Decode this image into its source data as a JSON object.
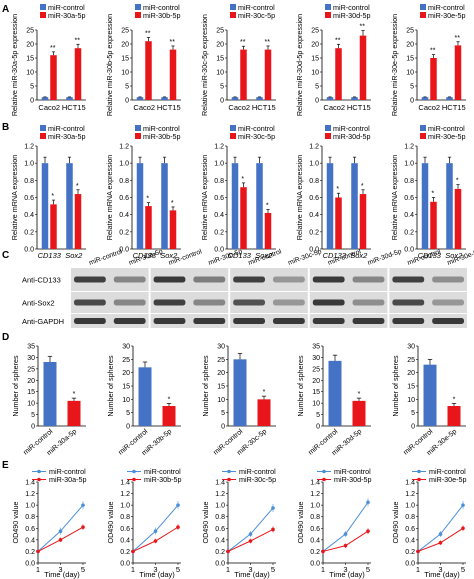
{
  "colors": {
    "control": "#4472c4",
    "treat": "#e8161b",
    "line_control": "#4a90d9",
    "line_treat": "#e8161b",
    "axis": "#000000",
    "blot_bg": "#dcdcdc",
    "band": "#2f2f2f"
  },
  "panel_labels": [
    "A",
    "B",
    "C",
    "D",
    "E"
  ],
  "mirs": [
    "miR-30a-5p",
    "miR-30b-5p",
    "miR-30c-5p",
    "miR-30d-5p",
    "miR-30e-5p"
  ],
  "control_label": "miR-control",
  "blot": {
    "labels": [
      "Anti-CD133",
      "Anti-Sox2",
      "Anti-GAPDH"
    ],
    "lanes": [
      "miR-control",
      "miR-30a-5p",
      "miR-control",
      "miR-30b-5p",
      "miR-control",
      "miR-30c-5p",
      "miR-control",
      "miR-30d-5p",
      "miR-control",
      "miR-30e-5p"
    ]
  },
  "chart_data": [
    {
      "panel": "A",
      "type": "bar",
      "ylabel": "Relative miR-30a-5p expression",
      "categories": [
        "Caco2",
        "HCT15"
      ],
      "ylim": [
        0,
        25
      ],
      "yticks": [
        0,
        5,
        10,
        15,
        20,
        25
      ],
      "series": [
        {
          "name": "miR-control",
          "values": [
            1,
            1
          ],
          "errors": [
            0.1,
            0.1
          ]
        },
        {
          "name": "miR-30a-5p",
          "values": [
            16,
            18.5
          ],
          "errors": [
            1.2,
            1.4
          ]
        }
      ],
      "sig": [
        "**",
        "**"
      ]
    },
    {
      "panel": "A",
      "type": "bar",
      "ylabel": "Relative miR-30b-5p expression",
      "categories": [
        "Caco2",
        "HCT15"
      ],
      "ylim": [
        0,
        25
      ],
      "yticks": [
        0,
        5,
        10,
        15,
        20,
        25
      ],
      "series": [
        {
          "name": "miR-control",
          "values": [
            1,
            1
          ],
          "errors": [
            0.1,
            0.1
          ]
        },
        {
          "name": "miR-30b-5p",
          "values": [
            21,
            18
          ],
          "errors": [
            1.3,
            1.3
          ]
        }
      ],
      "sig": [
        "**",
        "**"
      ]
    },
    {
      "panel": "A",
      "type": "bar",
      "ylabel": "Relative miR-30c-5p expression",
      "categories": [
        "Caco2",
        "HCT15"
      ],
      "ylim": [
        0,
        25
      ],
      "yticks": [
        0,
        5,
        10,
        15,
        20,
        25
      ],
      "series": [
        {
          "name": "miR-control",
          "values": [
            1,
            1
          ],
          "errors": [
            0.1,
            0.1
          ]
        },
        {
          "name": "miR-30c-5p",
          "values": [
            18,
            18
          ],
          "errors": [
            1.2,
            1.3
          ]
        }
      ],
      "sig": [
        "**",
        "**"
      ]
    },
    {
      "panel": "A",
      "type": "bar",
      "ylabel": "Relative miR-30d-5p expression",
      "categories": [
        "Caco2",
        "HCT15"
      ],
      "ylim": [
        0,
        25
      ],
      "yticks": [
        0,
        5,
        10,
        15,
        20,
        25
      ],
      "series": [
        {
          "name": "miR-control",
          "values": [
            1,
            1
          ],
          "errors": [
            0.1,
            0.1
          ]
        },
        {
          "name": "miR-30d-5p",
          "values": [
            18.5,
            23
          ],
          "errors": [
            1.4,
            1.8
          ]
        }
      ],
      "sig": [
        "**",
        "**"
      ]
    },
    {
      "panel": "A",
      "type": "bar",
      "ylabel": "Relative miR-30e-5p expression",
      "categories": [
        "Caco2",
        "HCT15"
      ],
      "ylim": [
        0,
        25
      ],
      "yticks": [
        0,
        5,
        10,
        15,
        20,
        25
      ],
      "series": [
        {
          "name": "miR-control",
          "values": [
            1,
            1
          ],
          "errors": [
            0.1,
            0.1
          ]
        },
        {
          "name": "miR-30e-5p",
          "values": [
            15,
            19.5
          ],
          "errors": [
            1.2,
            1.3
          ]
        }
      ],
      "sig": [
        "**",
        "**"
      ]
    },
    {
      "panel": "B",
      "type": "bar",
      "ylabel": "Relative mRNA expression",
      "categories": [
        "CD133",
        "Sox2"
      ],
      "ylim": [
        0,
        1.2
      ],
      "yticks": [
        0,
        0.2,
        0.4,
        0.6,
        0.8,
        1.0,
        1.2
      ],
      "series": [
        {
          "name": "miR-control",
          "values": [
            1.0,
            1.0
          ],
          "errors": [
            0.07,
            0.07
          ]
        },
        {
          "name": "miR-30a-5p",
          "values": [
            0.52,
            0.64
          ],
          "errors": [
            0.05,
            0.05
          ]
        }
      ],
      "sig": [
        "*",
        "*"
      ]
    },
    {
      "panel": "B",
      "type": "bar",
      "ylabel": "Relative mRNA expression",
      "categories": [
        "CD133",
        "Sox2"
      ],
      "ylim": [
        0,
        1.2
      ],
      "yticks": [
        0,
        0.2,
        0.4,
        0.6,
        0.8,
        1.0,
        1.2
      ],
      "series": [
        {
          "name": "miR-control",
          "values": [
            1.0,
            1.0
          ],
          "errors": [
            0.07,
            0.07
          ]
        },
        {
          "name": "miR-30b-5p",
          "values": [
            0.5,
            0.45
          ],
          "errors": [
            0.04,
            0.04
          ]
        }
      ],
      "sig": [
        "*",
        "*"
      ]
    },
    {
      "panel": "B",
      "type": "bar",
      "ylabel": "Relative mRNA expression",
      "categories": [
        "CD133",
        "Sox2"
      ],
      "ylim": [
        0,
        1.2
      ],
      "yticks": [
        0,
        0.2,
        0.4,
        0.6,
        0.8,
        1.0,
        1.2
      ],
      "series": [
        {
          "name": "miR-control",
          "values": [
            1.0,
            1.0
          ],
          "errors": [
            0.07,
            0.07
          ]
        },
        {
          "name": "miR-30c-5p",
          "values": [
            0.72,
            0.42
          ],
          "errors": [
            0.05,
            0.04
          ]
        }
      ],
      "sig": [
        "*",
        "*"
      ]
    },
    {
      "panel": "B",
      "type": "bar",
      "ylabel": "Relative mRNA expression",
      "categories": [
        "CD133",
        "Sox2"
      ],
      "ylim": [
        0,
        1.2
      ],
      "yticks": [
        0,
        0.2,
        0.4,
        0.6,
        0.8,
        1.0,
        1.2
      ],
      "series": [
        {
          "name": "miR-control",
          "values": [
            1.0,
            1.0
          ],
          "errors": [
            0.07,
            0.07
          ]
        },
        {
          "name": "miR-30d-5p",
          "values": [
            0.6,
            0.64
          ],
          "errors": [
            0.05,
            0.05
          ]
        }
      ],
      "sig": [
        "*",
        "*"
      ]
    },
    {
      "panel": "B",
      "type": "bar",
      "ylabel": "Relative mRNA expression",
      "categories": [
        "CD133",
        "Sox2"
      ],
      "ylim": [
        0,
        1.2
      ],
      "yticks": [
        0,
        0.2,
        0.4,
        0.6,
        0.8,
        1.0,
        1.2
      ],
      "series": [
        {
          "name": "miR-control",
          "values": [
            1.0,
            1.0
          ],
          "errors": [
            0.07,
            0.07
          ]
        },
        {
          "name": "miR-30e-5p",
          "values": [
            0.55,
            0.7
          ],
          "errors": [
            0.05,
            0.05
          ]
        }
      ],
      "sig": [
        "*",
        "*"
      ]
    },
    {
      "panel": "D",
      "type": "bar",
      "ylabel": "Number of spheres",
      "categories": [
        "miR-control",
        "miR-30a-5p"
      ],
      "ylim": [
        0,
        35
      ],
      "yticks": [
        0,
        5,
        10,
        15,
        20,
        25,
        30,
        35
      ],
      "series": [
        {
          "name": "spheres",
          "values": [
            28,
            11
          ],
          "errors": [
            2.5,
            1.2
          ]
        }
      ],
      "sig": [
        "",
        "*"
      ]
    },
    {
      "panel": "D",
      "type": "bar",
      "ylabel": "Number of spheres",
      "categories": [
        "miR-control",
        "miR-30b-5p"
      ],
      "ylim": [
        0,
        30
      ],
      "yticks": [
        0,
        5,
        10,
        15,
        20,
        25,
        30
      ],
      "series": [
        {
          "name": "spheres",
          "values": [
            22,
            7.5
          ],
          "errors": [
            2,
            1
          ]
        }
      ],
      "sig": [
        "",
        "*"
      ]
    },
    {
      "panel": "D",
      "type": "bar",
      "ylabel": "Number of spheres",
      "categories": [
        "miR-control",
        "miR-30c-5p"
      ],
      "ylim": [
        0,
        30
      ],
      "yticks": [
        0,
        5,
        10,
        15,
        20,
        25,
        30
      ],
      "series": [
        {
          "name": "spheres",
          "values": [
            25,
            10
          ],
          "errors": [
            2.2,
            1.2
          ]
        }
      ],
      "sig": [
        "",
        "*"
      ]
    },
    {
      "panel": "D",
      "type": "bar",
      "ylabel": "Number of spheres",
      "categories": [
        "miR-control",
        "miR-30d-5p"
      ],
      "ylim": [
        0,
        35
      ],
      "yticks": [
        0,
        5,
        10,
        15,
        20,
        25,
        30,
        35
      ],
      "series": [
        {
          "name": "spheres",
          "values": [
            28.5,
            11
          ],
          "errors": [
            2.5,
            1.2
          ]
        }
      ],
      "sig": [
        "",
        "*"
      ]
    },
    {
      "panel": "D",
      "type": "bar",
      "ylabel": "Number of spheres",
      "categories": [
        "miR-control",
        "miR-30e-5p"
      ],
      "ylim": [
        0,
        30
      ],
      "yticks": [
        0,
        5,
        10,
        15,
        20,
        25,
        30
      ],
      "series": [
        {
          "name": "spheres",
          "values": [
            23,
            7.5
          ],
          "errors": [
            2,
            1
          ]
        }
      ],
      "sig": [
        "",
        "*"
      ]
    },
    {
      "panel": "E",
      "type": "line",
      "ylabel": "OD490 value",
      "xlabel": "Time (day)",
      "x": [
        1,
        3,
        5
      ],
      "ylim": [
        0,
        1.4
      ],
      "yticks": [
        0,
        0.2,
        0.4,
        0.6,
        0.8,
        1.0,
        1.2,
        1.4
      ],
      "xticks": [
        1,
        3,
        5
      ],
      "series": [
        {
          "name": "miR-control",
          "values": [
            0.2,
            0.55,
            1.0
          ],
          "errors": [
            0.03,
            0.06,
            0.07
          ]
        },
        {
          "name": "miR-30a-5p",
          "values": [
            0.2,
            0.4,
            0.62
          ],
          "errors": [
            0.03,
            0.04,
            0.05
          ]
        }
      ]
    },
    {
      "panel": "E",
      "type": "line",
      "ylabel": "OD490 value",
      "xlabel": "Time (day)",
      "x": [
        1,
        3,
        5
      ],
      "ylim": [
        0,
        1.4
      ],
      "yticks": [
        0,
        0.2,
        0.4,
        0.6,
        0.8,
        1.0,
        1.2,
        1.4
      ],
      "xticks": [
        1,
        3,
        5
      ],
      "series": [
        {
          "name": "miR-control",
          "values": [
            0.2,
            0.55,
            1.0
          ],
          "errors": [
            0.03,
            0.06,
            0.07
          ]
        },
        {
          "name": "miR-30b-5p",
          "values": [
            0.2,
            0.38,
            0.62
          ],
          "errors": [
            0.03,
            0.04,
            0.05
          ]
        }
      ]
    },
    {
      "panel": "E",
      "type": "line",
      "ylabel": "OD490 value",
      "xlabel": "Time (day)",
      "x": [
        1,
        3,
        5
      ],
      "ylim": [
        0,
        1.4
      ],
      "yticks": [
        0,
        0.2,
        0.4,
        0.6,
        0.8,
        1.0,
        1.2,
        1.4
      ],
      "xticks": [
        1,
        3,
        5
      ],
      "series": [
        {
          "name": "miR-control",
          "values": [
            0.2,
            0.5,
            0.95
          ],
          "errors": [
            0.03,
            0.05,
            0.07
          ]
        },
        {
          "name": "miR-30c-5p",
          "values": [
            0.2,
            0.38,
            0.58
          ],
          "errors": [
            0.03,
            0.04,
            0.05
          ]
        }
      ]
    },
    {
      "panel": "E",
      "type": "line",
      "ylabel": "OD490 value",
      "xlabel": "Time (day)",
      "x": [
        1,
        3,
        5
      ],
      "ylim": [
        0,
        1.4
      ],
      "yticks": [
        0,
        0.2,
        0.4,
        0.6,
        0.8,
        1.0,
        1.2,
        1.4
      ],
      "xticks": [
        1,
        3,
        5
      ],
      "series": [
        {
          "name": "miR-control",
          "values": [
            0.2,
            0.5,
            1.05
          ],
          "errors": [
            0.03,
            0.05,
            0.07
          ]
        },
        {
          "name": "miR-30d-5p",
          "values": [
            0.2,
            0.3,
            0.55
          ],
          "errors": [
            0.03,
            0.04,
            0.05
          ]
        }
      ]
    },
    {
      "panel": "E",
      "type": "line",
      "ylabel": "OD490 value",
      "xlabel": "Time (day)",
      "x": [
        1,
        3,
        5
      ],
      "ylim": [
        0,
        1.4
      ],
      "yticks": [
        0,
        0.2,
        0.4,
        0.6,
        0.8,
        1.0,
        1.2,
        1.4
      ],
      "xticks": [
        1,
        3,
        5
      ],
      "series": [
        {
          "name": "miR-control",
          "values": [
            0.2,
            0.5,
            1.0
          ],
          "errors": [
            0.03,
            0.05,
            0.07
          ]
        },
        {
          "name": "miR-30e-5p",
          "values": [
            0.2,
            0.35,
            0.6
          ],
          "errors": [
            0.03,
            0.04,
            0.05
          ]
        }
      ]
    }
  ]
}
